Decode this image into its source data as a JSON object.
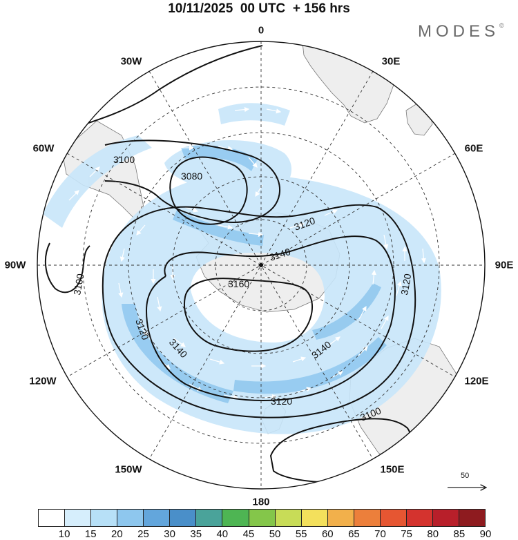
{
  "header": {
    "title": "10/11/2025  00 UTC  + 156 hrs"
  },
  "brand": {
    "name": "MODES",
    "mark": "©"
  },
  "map": {
    "projection": "south-polar-stereographic",
    "longitude_labels": [
      "0",
      "30E",
      "60E",
      "90E",
      "120E",
      "150E",
      "180",
      "150W",
      "120W",
      "90W",
      "60W",
      "30W"
    ],
    "contour_labels": [
      "3080",
      "3100",
      "3100",
      "3100",
      "3120",
      "3120",
      "3120",
      "3120",
      "3140",
      "3140",
      "3140",
      "3160"
    ],
    "reference_vector": {
      "label": "50"
    }
  },
  "colorbar": {
    "ticks": [
      "10",
      "15",
      "20",
      "25",
      "30",
      "35",
      "40",
      "45",
      "50",
      "55",
      "60",
      "65",
      "70",
      "75",
      "80",
      "85",
      "90"
    ],
    "colors": [
      "#ffffff",
      "#d6eefc",
      "#b7e0f7",
      "#8ec7ee",
      "#63a6dc",
      "#4a8fc9",
      "#4aa39a",
      "#4eb553",
      "#84c64a",
      "#c8dc57",
      "#f3e05c",
      "#f2b04b",
      "#ec7f3b",
      "#e65632",
      "#d4332e",
      "#b81f2a",
      "#8e1b1f"
    ]
  }
}
